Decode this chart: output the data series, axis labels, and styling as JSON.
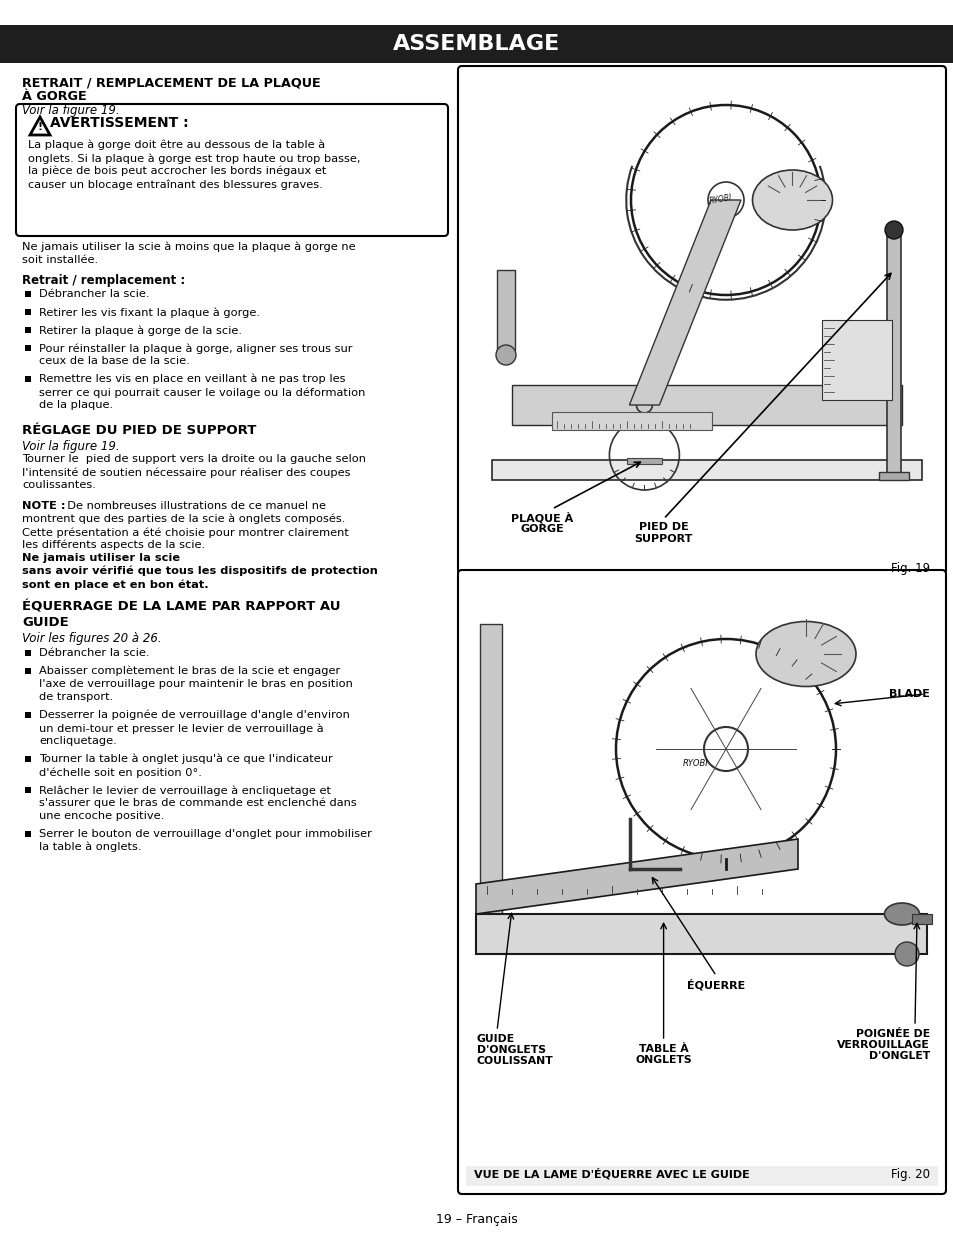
{
  "page_bg": "#ffffff",
  "header_bg": "#1e1e1e",
  "header_text": "ASSEMBLAGE",
  "header_text_color": "#ffffff",
  "fig_width": 9.54,
  "fig_height": 12.35,
  "section1_title_line1": "RETRAIT / REMPLACEMENT DE LA PLAQUE",
  "section1_title_line2": "À GORGE",
  "section1_ref": "Voir la figure 19.",
  "warning_title": "AVERTISSEMENT :",
  "warning_body_lines": [
    "La plaque à gorge doit être au dessous de la table à",
    "onglets. Si la plaque à gorge est trop haute ou trop basse,",
    "la pièce de bois peut accrocher les bords inégaux et",
    "causer un blocage entraînant des blessures graves."
  ],
  "para1_lines": [
    "Ne jamais utiliser la scie à moins que la plaque à gorge ne",
    "soit installée."
  ],
  "bold1": "Retrait / remplacement :",
  "bullets1": [
    [
      "Débrancher la scie."
    ],
    [
      "Retirer les vis fixant la plaque à gorge."
    ],
    [
      "Retirer la plaque à gorge de la scie."
    ],
    [
      "Pour réinstaller la plaque à gorge, aligner ses trous sur",
      "ceux de la base de la scie."
    ],
    [
      "Remettre les vis en place en veillant à ne pas trop les",
      "serrer ce qui pourrait causer le voilage ou la déformation",
      "de la plaque."
    ]
  ],
  "section2_title": "RÉGLAGE DU PIED DE SUPPORT",
  "section2_ref": "Voir la figure 19.",
  "section2_para_lines": [
    "Tourner le  pied de support vers la droite ou la gauche selon",
    "l'intensité de soutien nécessaire pour réaliser des coupes",
    "coulissantes."
  ],
  "note_line1_bold": "NOTE :",
  "note_line1_normal": "  De nombreuses illustrations de ce manuel ne",
  "note_lines_normal": [
    "montrent que des parties de la scie à onglets composés.",
    "Cette présentation a été choisie pour montrer clairement",
    "les différents aspects de la scie."
  ],
  "note_bold_end_lines": [
    "Ne jamais utiliser la scie",
    "sans avoir vérifié que tous les dispositifs de protection",
    "sont en place et en bon état."
  ],
  "section3_title_line1": "ÉQUERRAGE DE LA LAME PAR RAPPORT AU",
  "section3_title_line2": "GUIDE",
  "section3_ref": "Voir les figures 20 à 26.",
  "bullets3": [
    [
      "Débrancher la scie."
    ],
    [
      "Abaisser complètement le bras de la scie et engager",
      "l'axe de verrouillage pour maintenir le bras en position",
      "de transport."
    ],
    [
      "Desserrer la poignée de verrouillage d'angle d'environ",
      "un demi-tour et presser le levier de verrouillage à",
      "encliquetage."
    ],
    [
      "Tourner la table à onglet jusqu'à ce que l'indicateur",
      "d'échelle soit en position 0°."
    ],
    [
      "Relâcher le levier de verrouillage à encliquetage et",
      "s'assurer que le bras de commande est enclenché dans",
      "une encoche positive."
    ],
    [
      "Serrer le bouton de verrouillage d'onglet pour immobiliser",
      "la table à onglets."
    ]
  ],
  "footer_text": "19 – Français",
  "fig19_label1_lines": [
    "PLAQUE À",
    "GORGE"
  ],
  "fig19_label2_lines": [
    "PIED DE",
    "SUPPORT"
  ],
  "fig19_caption": "Fig. 19",
  "fig20_label_blade": "BLADE",
  "fig20_label_equerre": "ÉQUERRE",
  "fig20_label_guide_lines": [
    "GUIDE",
    "D'ONGLETS",
    "COULISSANT"
  ],
  "fig20_label_table_lines": [
    "TABLE À",
    "ONGLETS"
  ],
  "fig20_label_poignee_lines": [
    "POIGNÉE DE",
    "VERROUILLAGE",
    "D'ONGLET"
  ],
  "fig20_caption_main": "VUE DE LA LAME D'ÉQUERRE AVEC LE GUIDE",
  "fig20_caption": "Fig. 20"
}
